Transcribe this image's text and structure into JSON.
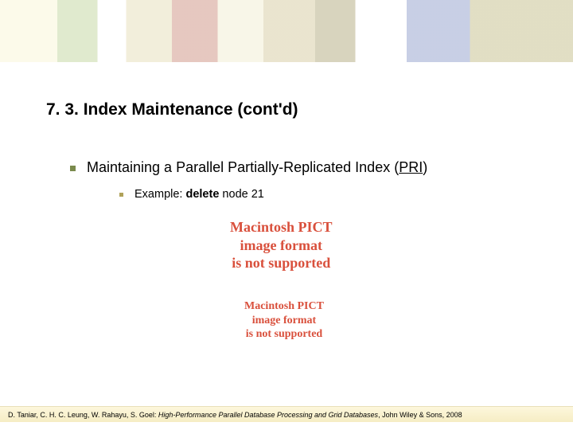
{
  "banner": {
    "alt": "decorative-leaf-banner"
  },
  "title": "7. 3. Index Maintenance (cont'd)",
  "bullet1": {
    "prefix": "Maintaining a Parallel Partially-Replicated Index (",
    "acronym": "PRI",
    "suffix": ")",
    "bullet_color": "#7a8a4c"
  },
  "bullet2": {
    "prefix": "Example: ",
    "bold": "delete",
    "suffix": " node 21",
    "bullet_color": "#b0a25a"
  },
  "placeholder": {
    "line1": "Macintosh PICT",
    "line2": "image format",
    "line3": "is not supported"
  },
  "footer": {
    "authors": "D. Taniar, C. H. C. Leung, W. Rahayu, S. Goel: ",
    "title_italic": "High-Performance Parallel Database Processing and Grid Databases",
    "tail": ", John Wiley & Sons, 2008"
  },
  "colors": {
    "placeholder_text": "#d9503c",
    "footer_bg_top": "#fdf7dc",
    "footer_bg_bottom": "#f6edc4"
  }
}
